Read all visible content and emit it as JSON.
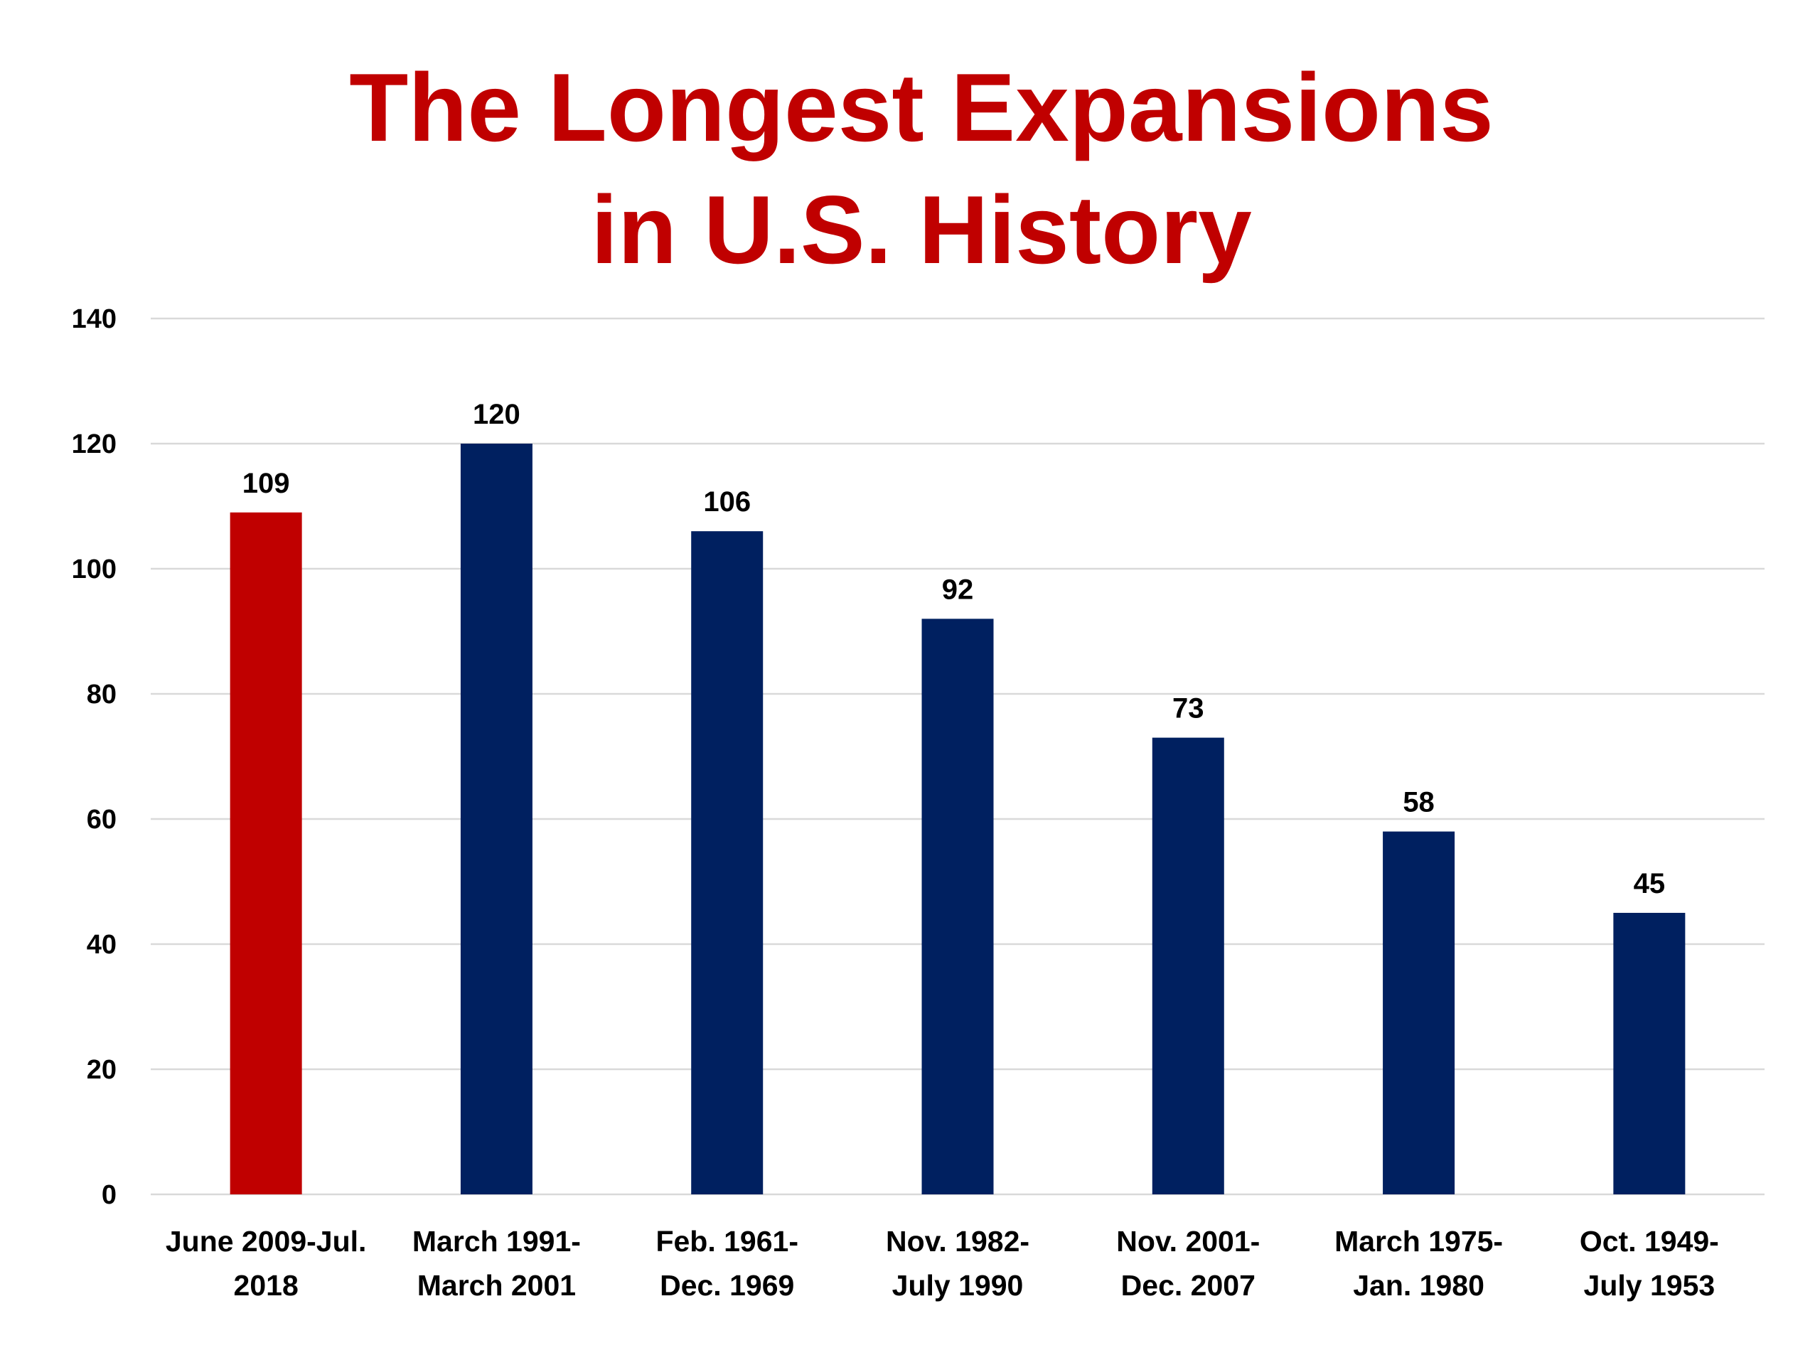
{
  "chart_data": {
    "type": "bar",
    "title": "The Longest Expansions",
    "subtitle": "in U.S. History",
    "xlabel": "",
    "ylabel": "",
    "ylim": [
      0,
      140
    ],
    "yticks": [
      0,
      20,
      40,
      60,
      80,
      100,
      120,
      140
    ],
    "grid": true,
    "legend": "none",
    "categories": [
      [
        "June 2009-Jul.",
        "2018"
      ],
      [
        "March 1991-",
        "March 2001"
      ],
      [
        "Feb. 1961-",
        "Dec. 1969"
      ],
      [
        "Nov. 1982-",
        "July 1990"
      ],
      [
        "Nov. 2001-",
        "Dec. 2007"
      ],
      [
        "March 1975-",
        "Jan. 1980"
      ],
      [
        "Oct. 1949-",
        "July 1953"
      ]
    ],
    "values": [
      109,
      120,
      106,
      92,
      73,
      58,
      45
    ],
    "data_labels": [
      "109",
      "120",
      "106",
      "92",
      "73",
      "58",
      "45"
    ],
    "colors": {
      "title": "#c00000",
      "highlight_bar": "#c00000",
      "bar": "#002060",
      "grid": "#d9d9d9",
      "text": "#000000"
    },
    "highlight_index": 0
  }
}
